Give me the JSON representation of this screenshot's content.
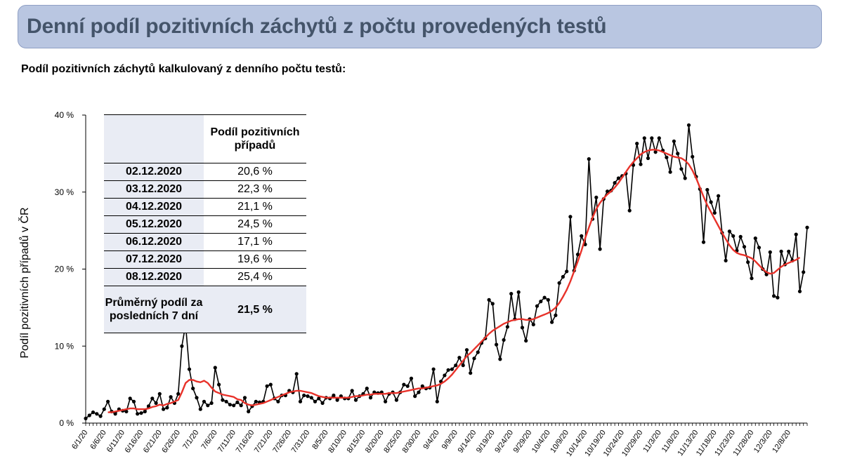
{
  "header": {
    "title": "Denní podíl pozitivních záchytů z počtu provedených testů"
  },
  "subtitle": "Podíl pozitivních záchytů kalkulovaný z denního počtu testů:",
  "table": {
    "header": "Podíl pozitivních případů",
    "rows": [
      {
        "date": "02.12.2020",
        "value": "20,6 %"
      },
      {
        "date": "03.12.2020",
        "value": "22,3 %"
      },
      {
        "date": "04.12.2020",
        "value": "21,1 %"
      },
      {
        "date": "05.12.2020",
        "value": "24,5 %"
      },
      {
        "date": "06.12.2020",
        "value": "17,1 %"
      },
      {
        "date": "07.12.2020",
        "value": "19,6 %"
      },
      {
        "date": "08.12.2020",
        "value": "25,4 %"
      }
    ],
    "footer_label": "Průměrný podíl za posledních 7 dní",
    "footer_value": "21,5 %"
  },
  "colors": {
    "header_bg": "#b9c6e1",
    "header_text": "#44546a",
    "daily": "#000000",
    "average": "#e8322a"
  },
  "chart_data": {
    "type": "line",
    "title": "",
    "ylabel": "Podíl pozitivních případů v ČR",
    "xlabel": "",
    "ylim": [
      0,
      40
    ],
    "yticks": [
      0,
      10,
      20,
      30,
      40
    ],
    "ytick_labels": [
      "0 %",
      "10 %",
      "20 %",
      "30 %",
      "40 %"
    ],
    "grid": false,
    "x_start": "2020-06-01",
    "x_end": "2020-12-08",
    "xtick_labels": [
      "6/1/20",
      "6/6/20",
      "6/11/20",
      "6/16/20",
      "6/21/20",
      "6/26/20",
      "7/1/20",
      "7/6/20",
      "7/11/20",
      "7/16/20",
      "7/21/20",
      "7/26/20",
      "7/31/20",
      "8/5/20",
      "8/10/20",
      "8/15/20",
      "8/20/20",
      "8/25/20",
      "8/30/20",
      "9/4/20",
      "9/9/20",
      "9/14/20",
      "9/19/20",
      "9/24/20",
      "9/29/20",
      "10/4/20",
      "10/9/20",
      "10/14/20",
      "10/19/20",
      "10/24/20",
      "10/29/20",
      "11/3/20",
      "11/8/20",
      "11/13/20",
      "11/18/20",
      "11/23/20",
      "11/28/20",
      "12/3/20",
      "12/8/20"
    ],
    "series": [
      {
        "values": [
          0.6,
          1.0,
          1.4,
          1.2,
          0.9,
          1.8,
          2.8,
          1.5,
          1.2,
          1.8,
          1.6,
          1.5,
          3.2,
          2.8,
          1.2,
          1.3,
          1.5,
          2.2,
          3.2,
          2.6,
          3.8,
          1.8,
          2.0,
          3.4,
          2.6,
          3.8,
          10.0,
          12.8,
          7.0,
          4.5,
          3.3,
          1.8,
          2.8,
          2.3,
          2.6,
          7.2,
          5.0,
          3.0,
          2.8,
          2.4,
          2.3,
          2.7,
          2.3,
          3.3,
          1.5,
          2.2,
          2.8,
          2.7,
          2.8,
          4.8,
          5.0,
          3.2,
          2.8,
          3.6,
          3.6,
          4.2,
          4.0,
          6.4,
          2.8,
          3.6,
          3.5,
          3.3,
          2.8,
          3.2,
          2.6,
          3.3,
          3.2,
          3.6,
          3.0,
          3.5,
          3.2,
          3.2,
          4.2,
          3.0,
          3.5,
          3.8,
          4.5,
          3.3,
          4.0,
          3.9,
          4.0,
          2.8,
          3.8,
          4.0,
          3.0,
          4.0,
          5.0,
          4.8,
          5.8,
          3.5,
          4.0,
          4.8,
          4.5,
          4.6,
          7.0,
          2.8,
          5.4,
          6.2,
          6.9,
          7.0,
          7.5,
          8.5,
          7.5,
          9.5,
          6.5,
          8.4,
          9.2,
          10.4,
          11.0,
          16.0,
          15.5,
          10.2,
          8.3,
          10.8,
          12.5,
          16.8,
          13.5,
          17.0,
          12.4,
          10.7,
          13.5,
          12.8,
          15.2,
          15.8,
          16.3,
          16.0,
          13.1,
          14.0,
          18.2,
          19.0,
          19.7,
          26.8,
          19.8,
          21.9,
          24.3,
          23.2,
          34.3,
          26.5,
          29.3,
          22.6,
          29.1,
          30.1,
          30.2,
          31.2,
          31.8,
          32.1,
          32.4,
          27.6,
          33.5,
          36.3,
          33.6,
          37.0,
          34.4,
          37.0,
          35.2,
          37.0,
          35.4,
          34.5,
          32.6,
          36.6,
          35.0,
          33.0,
          31.8,
          38.7,
          34.6,
          32.0,
          30.4,
          23.5,
          30.3,
          28.7,
          27.3,
          29.5,
          24.7,
          21.1,
          24.9,
          24.3,
          22.4,
          24.2,
          22.9,
          20.9,
          18.8,
          24.0,
          22.8,
          20.0,
          19.3,
          22.2,
          16.5,
          16.3,
          22.3,
          20.6,
          22.3,
          21.1,
          24.5,
          17.1,
          19.6,
          25.4
        ]
      },
      {
        "values": [
          null,
          null,
          null,
          null,
          null,
          null,
          1.4,
          1.4,
          1.5,
          1.6,
          1.7,
          1.8,
          1.9,
          1.9,
          1.8,
          1.8,
          1.8,
          1.9,
          2.1,
          2.2,
          2.4,
          2.3,
          2.5,
          2.6,
          2.8,
          3.0,
          4.0,
          5.2,
          5.6,
          5.6,
          5.4,
          5.3,
          5.5,
          5.2,
          4.6,
          4.1,
          3.9,
          3.7,
          3.6,
          3.5,
          3.4,
          3.1,
          3.0,
          2.6,
          2.4,
          2.3,
          2.4,
          2.5,
          2.6,
          2.8,
          3.0,
          3.2,
          3.4,
          3.6,
          3.8,
          4.0,
          4.1,
          4.2,
          4.2,
          4.1,
          4.0,
          3.9,
          3.7,
          3.5,
          3.4,
          3.3,
          3.3,
          3.3,
          3.3,
          3.3,
          3.3,
          3.3,
          3.4,
          3.5,
          3.5,
          3.6,
          3.7,
          3.7,
          3.8,
          3.8,
          3.8,
          3.8,
          3.9,
          3.9,
          3.9,
          4.0,
          4.1,
          4.2,
          4.3,
          4.4,
          4.5,
          4.5,
          4.6,
          4.7,
          4.8,
          4.9,
          5.1,
          5.4,
          5.8,
          6.3,
          6.9,
          7.5,
          8.1,
          8.7,
          9.1,
          9.6,
          10.1,
          10.6,
          11.1,
          11.6,
          12.0,
          12.3,
          12.6,
          12.9,
          13.1,
          13.3,
          13.4,
          13.5,
          13.5,
          13.4,
          13.4,
          13.5,
          13.7,
          13.9,
          14.1,
          14.3,
          14.6,
          15.0,
          15.6,
          16.4,
          17.3,
          18.4,
          19.7,
          21.0,
          22.4,
          24.0,
          25.4,
          26.7,
          27.8,
          28.6,
          29.2,
          29.7,
          30.1,
          30.6,
          31.2,
          31.9,
          32.6,
          33.3,
          33.9,
          34.4,
          34.9,
          35.2,
          35.4,
          35.5,
          35.5,
          35.4,
          35.2,
          35.0,
          34.8,
          34.6,
          34.5,
          34.4,
          34.1,
          33.6,
          32.8,
          31.8,
          30.6,
          29.4,
          28.3,
          27.4,
          26.5,
          25.6,
          24.7,
          23.9,
          23.1,
          22.5,
          22.1,
          21.9,
          21.8,
          21.6,
          21.4,
          21.0,
          20.5,
          20.0,
          19.6,
          19.4,
          19.5,
          19.9,
          20.3,
          20.6,
          20.8,
          21.0,
          21.2,
          21.5
        ]
      }
    ]
  }
}
